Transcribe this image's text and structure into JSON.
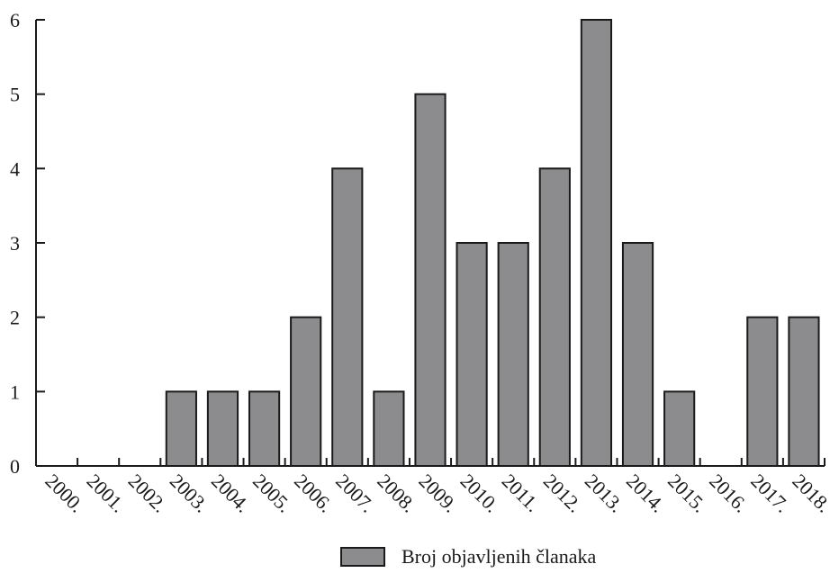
{
  "chart_data": {
    "type": "bar",
    "categories": [
      "2000.",
      "2001.",
      "2002.",
      "2003.",
      "2004.",
      "2005.",
      "2006.",
      "2007.",
      "2008.",
      "2009.",
      "2010.",
      "2011.",
      "2012.",
      "2013.",
      "2014.",
      "2015.",
      "2016.",
      "2017.",
      "2018."
    ],
    "series": [
      {
        "name": "Broj objavljenih članaka",
        "values": [
          0,
          0,
          0,
          1,
          1,
          1,
          2,
          4,
          1,
          5,
          3,
          3,
          4,
          6,
          3,
          1,
          0,
          2,
          2
        ]
      }
    ],
    "y_ticks": [
      "0",
      "1",
      "2",
      "3",
      "4",
      "5",
      "6"
    ],
    "ylim": [
      0,
      6
    ],
    "grid": false,
    "legend_position": "bottom-center",
    "colors": {
      "bar": "#8c8c8e",
      "outline": "#1a1a1a"
    }
  }
}
